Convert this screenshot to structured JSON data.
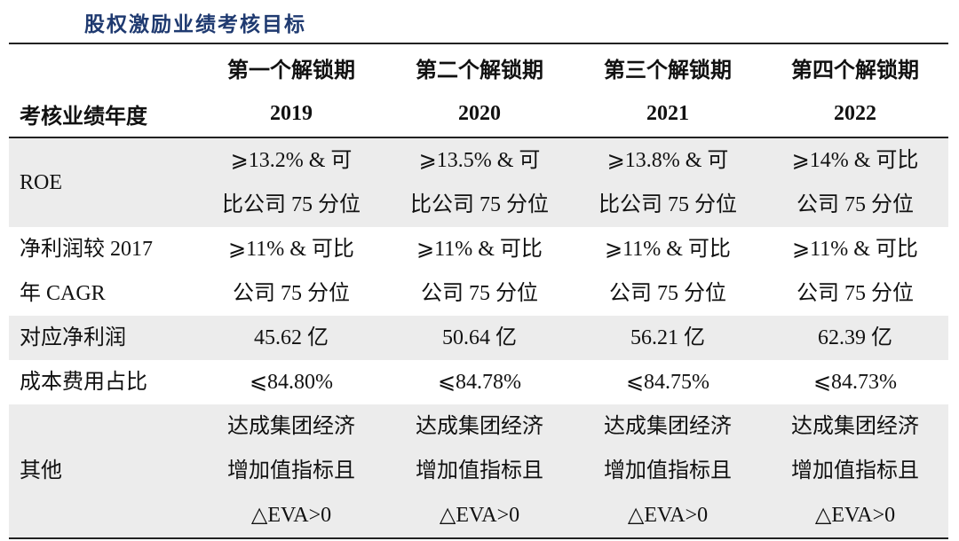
{
  "title": "股权激励业绩考核目标",
  "table": {
    "periods": [
      "第一个解锁期",
      "第二个解锁期",
      "第三个解锁期",
      "第四个解锁期"
    ],
    "year_label": "考核业绩年度",
    "years": [
      "2019",
      "2020",
      "2021",
      "2022"
    ],
    "rows": [
      {
        "label": [
          "ROE"
        ],
        "cells": [
          [
            "⩾13.2% & 可",
            "比公司 75 分位"
          ],
          [
            "⩾13.5% & 可",
            "比公司 75 分位"
          ],
          [
            "⩾13.8% & 可",
            "比公司 75 分位"
          ],
          [
            "⩾14% & 可比",
            "公司 75 分位"
          ]
        ]
      },
      {
        "label": [
          "净利润较 2017",
          "年 CAGR"
        ],
        "cells": [
          [
            "⩾11% & 可比",
            "公司 75 分位"
          ],
          [
            "⩾11% & 可比",
            "公司 75 分位"
          ],
          [
            "⩾11% & 可比",
            "公司 75 分位"
          ],
          [
            "⩾11% & 可比",
            "公司 75 分位"
          ]
        ]
      },
      {
        "label": [
          "对应净利润"
        ],
        "cells": [
          [
            "45.62 亿"
          ],
          [
            "50.64 亿"
          ],
          [
            "56.21 亿"
          ],
          [
            "62.39 亿"
          ]
        ]
      },
      {
        "label": [
          "成本费用占比"
        ],
        "cells": [
          [
            "⩽84.80%"
          ],
          [
            "⩽84.78%"
          ],
          [
            "⩽84.75%"
          ],
          [
            "⩽84.73%"
          ]
        ]
      },
      {
        "label": [
          "其他"
        ],
        "cells": [
          [
            "达成集团经济",
            "增加值指标且",
            "△EVA>0"
          ],
          [
            "达成集团经济",
            "增加值指标且",
            "△EVA>0"
          ],
          [
            "达成集团经济",
            "增加值指标且",
            "△EVA>0"
          ],
          [
            "达成集团经济",
            "增加值指标且",
            "△EVA>0"
          ]
        ]
      }
    ]
  }
}
